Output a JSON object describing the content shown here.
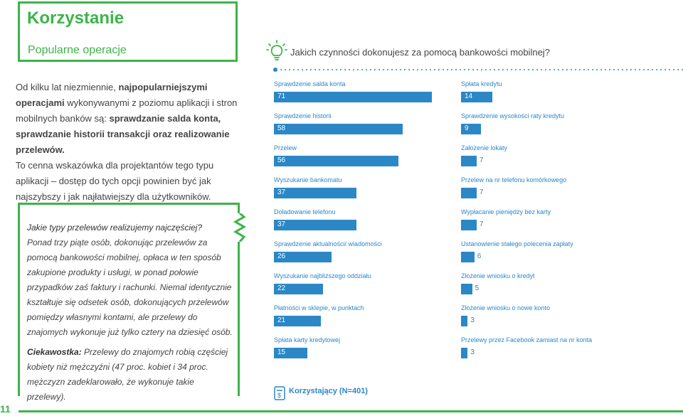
{
  "header": {
    "title": "Korzystanie",
    "subtitle": "Popularne operacje"
  },
  "intro": {
    "p1_a": "Od kilku lat niezmiennie, ",
    "p1_b": "najpopularniejszymi operacjami",
    "p1_c": " wykonywanymi z poziomu aplikacji i stron mobilnych banków są: ",
    "p1_d": "sprawdzanie salda konta, sprawdzanie historii transakcji oraz realizowanie przelewów.",
    "p2": "To cenna wskazówka dla projektantów tego typu aplikacji – dostęp do tych opcji powinien być jak najszybszy i jak najłatwiejszy dla użytkowników."
  },
  "callout": {
    "question": "Jakie typy przelewów realizujemy najczęściej?",
    "body": "Ponad trzy piąte osób, dokonując przelewów za pomocą bankowości mobilnej, opłaca w ten sposób zakupione produkty i usługi, w ponad połowie przypadków zaś faktury i rachunki. Niemal identycznie kształtuje się odsetek osób, dokonujących przelewów pomiędzy własnymi kontami, ale przelewy do znajomych wykonuje już tylko cztery na dziesięć osób.",
    "fact_label": "Ciekawostka:",
    "fact_body": " Przelewy do znajomych robią częściej kobiety niż mężczyźni  (47 proc. kobiet i 34 proc. mężczyzn zadeklarowało, że wykonuje takie przelewy)."
  },
  "page_number": "11",
  "chart_question": "Jakich czynności dokonujesz za pomocą bankowości mobilnej?",
  "legend": "Korzystający (N=401)",
  "colors": {
    "green": "#3cb44a",
    "blue": "#2b87c6"
  },
  "chart_data": {
    "type": "bar",
    "orientation": "horizontal",
    "title": "Jakich czynności dokonujesz za pomocą bankowości mobilnej?",
    "legend": "Korzystający (N=401)",
    "columns": [
      {
        "categories": [
          "Sprawdzenie salda konta",
          "Sprawdzenie historii",
          "Przelew",
          "Wyszukanie bankomatu",
          "Doładowanie telefonu",
          "Sprawdzenie aktualności/ wiadomości",
          "Wyszukanie najbliższego oddziału",
          "Płatności w sklepie, w punktach",
          "Spłata karty kredytowej"
        ],
        "values": [
          71,
          58,
          56,
          37,
          37,
          26,
          22,
          21,
          15
        ]
      },
      {
        "categories": [
          "Spłata kredytu",
          "Sprawdzenie wysokości raty kredytu",
          "Założenie lokaty",
          "Przelew na nr telefonu komórkowego",
          "Wypłacanie pieniędzy bez karty",
          "Ustanowienie stałego polecenia zapłaty",
          "Złożenie wniosku o kredyt",
          "Złożenie wniosku o nowe konto",
          "Przelewy przez Facebook zamiast na nr konta"
        ],
        "values": [
          14,
          9,
          7,
          7,
          7,
          6,
          5,
          3,
          3
        ]
      }
    ]
  }
}
